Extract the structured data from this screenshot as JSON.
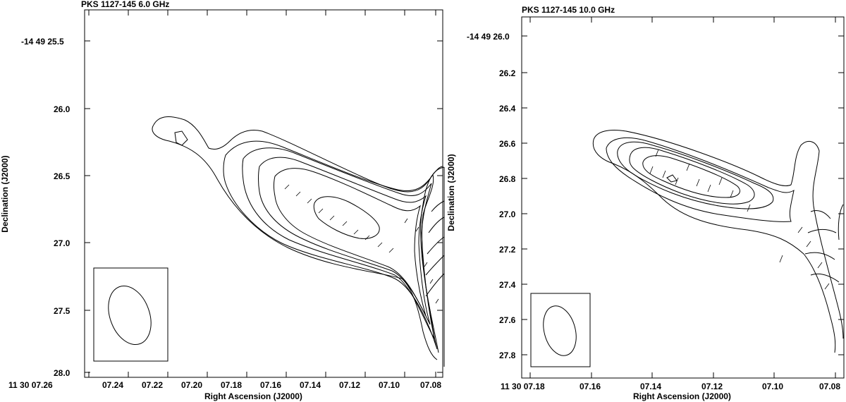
{
  "chart_data": [
    {
      "type": "contour",
      "title": "PKS 1127-145  6.0 GHz",
      "xlabel": "Right Ascension (J2000)",
      "ylabel": "Declination (J2000)",
      "x_ticks": [
        "11 30 07.26",
        "07.24",
        "07.22",
        "07.20",
        "07.18",
        "07.16",
        "07.14",
        "07.12",
        "07.10",
        "07.08"
      ],
      "y_ticks": [
        "-14 49 25.5",
        "26.0",
        "26.5",
        "27.0",
        "27.5",
        "28.0"
      ],
      "contour_levels": 7,
      "beam_box": true
    },
    {
      "type": "contour",
      "title": "PKS 1127-145  10.0 GHz",
      "xlabel": "Right Ascension (J2000)",
      "ylabel": "Declination (J2000)",
      "x_ticks": [
        "11 30 07.18",
        "07.16",
        "07.14",
        "07.12",
        "07.10",
        "07.08"
      ],
      "y_ticks": [
        "-14 49 26.0",
        "26.2",
        "26.4",
        "26.6",
        "26.8",
        "27.0",
        "27.2",
        "27.4",
        "27.6",
        "27.8"
      ],
      "contour_levels": 6,
      "beam_box": true
    }
  ]
}
